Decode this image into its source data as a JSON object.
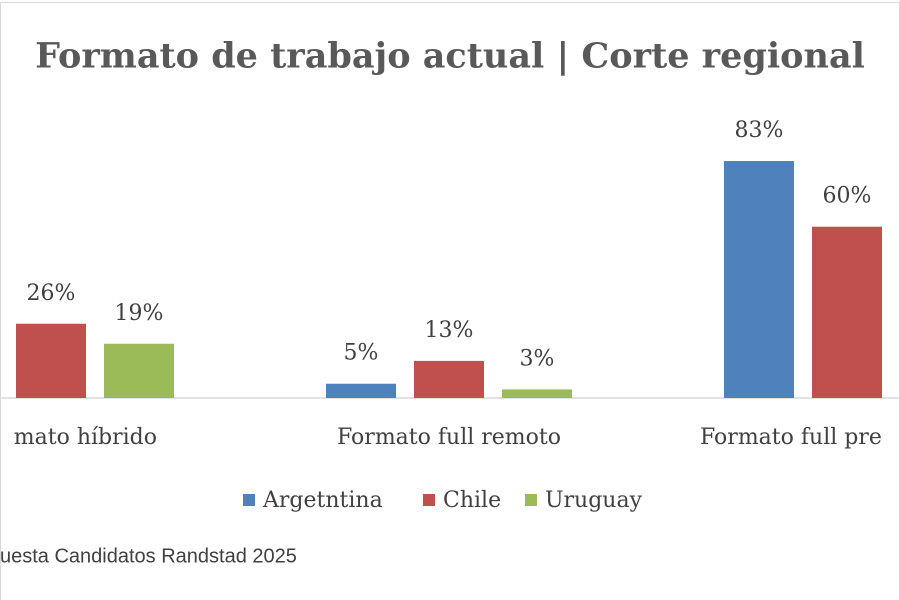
{
  "chart_data": {
    "type": "bar",
    "title": "Formato de trabajo actual | Corte regional",
    "categories": [
      "mato híbrido",
      "Formato full remoto",
      "Formato full pre"
    ],
    "series": [
      {
        "name": "Argetntina",
        "color": "#4f81bd",
        "values": [
          null,
          5,
          83
        ],
        "value_labels": [
          null,
          "5%",
          "83%"
        ]
      },
      {
        "name": "Chile",
        "color": "#c0504d",
        "values": [
          26,
          13,
          60
        ],
        "value_labels": [
          "26%",
          "13%",
          "60%"
        ]
      },
      {
        "name": "Uruguay",
        "color": "#9bbb59",
        "values": [
          19,
          3,
          null
        ],
        "value_labels": [
          "19%",
          "3%",
          null
        ]
      }
    ],
    "ylim": [
      0,
      100
    ],
    "source": "uesta Candidatos Randstad 2025"
  }
}
